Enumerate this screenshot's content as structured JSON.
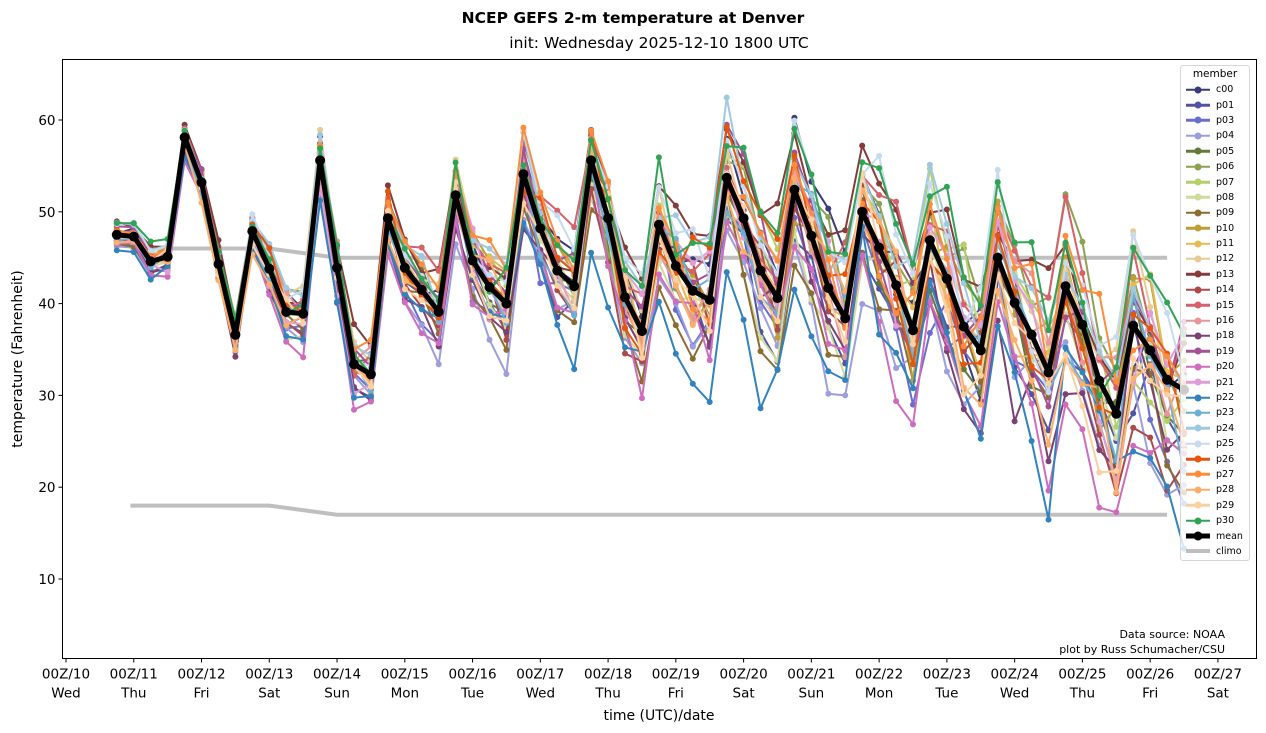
{
  "chart_data": {
    "type": "line",
    "title": "NCEP GEFS 2-m temperature at Denver",
    "subtitle": "init: Wednesday 2025-12-10 1800 UTC",
    "xlabel": "time (UTC)/date",
    "ylabel": "temperature (Fahrenheit)",
    "ylim": [
      1.4,
      66.6
    ],
    "yticks": [
      "10",
      "20",
      "30",
      "40",
      "50",
      "60"
    ],
    "ytick_values": [
      10,
      20,
      30,
      40,
      50,
      60
    ],
    "x_start_hours_after_00Z_10": 18,
    "x_step_hours": 6,
    "xlim_days": [
      -0.06,
      17.56
    ],
    "xticks": [
      {
        "top": "00Z/10",
        "bottom": "Wed"
      },
      {
        "top": "00Z/11",
        "bottom": "Thu"
      },
      {
        "top": "00Z/12",
        "bottom": "Fri"
      },
      {
        "top": "00Z/13",
        "bottom": "Sat"
      },
      {
        "top": "00Z/14",
        "bottom": "Sun"
      },
      {
        "top": "00Z/15",
        "bottom": "Mon"
      },
      {
        "top": "00Z/16",
        "bottom": "Tue"
      },
      {
        "top": "00Z/17",
        "bottom": "Wed"
      },
      {
        "top": "00Z/18",
        "bottom": "Thu"
      },
      {
        "top": "00Z/19",
        "bottom": "Fri"
      },
      {
        "top": "00Z/20",
        "bottom": "Sat"
      },
      {
        "top": "00Z/21",
        "bottom": "Sun"
      },
      {
        "top": "00Z/22",
        "bottom": "Mon"
      },
      {
        "top": "00Z/23",
        "bottom": "Tue"
      },
      {
        "top": "00Z/24",
        "bottom": "Wed"
      },
      {
        "top": "00Z/25",
        "bottom": "Thu"
      },
      {
        "top": "00Z/26",
        "bottom": "Fri"
      },
      {
        "top": "00Z/27",
        "bottom": "Sat"
      }
    ],
    "legend_title": "member",
    "legend_position": "right",
    "mean": {
      "name": "mean",
      "color": "#000000",
      "values": [
        47.5,
        47.3,
        44.6,
        45.1,
        58.1,
        53.2,
        44.3,
        36.6,
        47.9,
        43.8,
        39.1,
        38.9,
        55.6,
        43.9,
        33.4,
        32.3,
        49.3,
        43.9,
        41.5,
        39.1,
        51.8,
        44.7,
        41.8,
        40.0,
        54.1,
        48.2,
        43.6,
        41.9,
        55.6,
        49.3,
        40.7,
        37.0,
        48.6,
        44.1,
        41.4,
        40.4,
        53.7,
        49.3,
        43.6,
        40.6,
        52.4,
        47.4,
        41.7,
        38.4,
        50.0,
        46.1,
        42.0,
        37.1,
        46.9,
        42.7,
        37.5,
        34.9,
        45.0,
        40.1,
        36.6,
        32.5,
        41.9,
        37.7,
        31.6,
        28.0,
        37.6,
        34.9,
        31.7,
        30.6
      ]
    },
    "climo": {
      "name": "climo",
      "color": "#bfbfbf",
      "max": {
        "days": [
          0.95,
          3.0,
          4.0,
          16.25
        ],
        "values": [
          46,
          46,
          45,
          45
        ]
      },
      "min": {
        "days": [
          0.95,
          3.0,
          4.0,
          16.25
        ],
        "values": [
          18,
          18,
          17,
          17
        ]
      }
    },
    "members": [
      {
        "name": "c00",
        "color": "#393b79",
        "offset": 0.3,
        "seed": 1
      },
      {
        "name": "p01",
        "color": "#5254a3",
        "offset": -0.8,
        "seed": 2
      },
      {
        "name": "p03",
        "color": "#6b6ecf",
        "offset": -1.5,
        "seed": 3
      },
      {
        "name": "p04",
        "color": "#9c9ede",
        "offset": -2.0,
        "seed": 4
      },
      {
        "name": "p05",
        "color": "#637939",
        "offset": -0.5,
        "seed": 5
      },
      {
        "name": "p06",
        "color": "#8ca252",
        "offset": 0.9,
        "seed": 6
      },
      {
        "name": "p07",
        "color": "#b5cf6b",
        "offset": 0.6,
        "seed": 7
      },
      {
        "name": "p08",
        "color": "#cedb9c",
        "offset": -1.2,
        "seed": 8
      },
      {
        "name": "p09",
        "color": "#8c6d31",
        "offset": -1.8,
        "seed": 9
      },
      {
        "name": "p10",
        "color": "#bd9e39",
        "offset": 0.4,
        "seed": 10
      },
      {
        "name": "p11",
        "color": "#e7ba52",
        "offset": 0.2,
        "seed": 11
      },
      {
        "name": "p12",
        "color": "#e7cb94",
        "offset": 0.7,
        "seed": 12
      },
      {
        "name": "p13",
        "color": "#843c39",
        "offset": 2.2,
        "seed": 13
      },
      {
        "name": "p14",
        "color": "#ad494a",
        "offset": -0.9,
        "seed": 14
      },
      {
        "name": "p15",
        "color": "#d6616b",
        "offset": 1.1,
        "seed": 15
      },
      {
        "name": "p16",
        "color": "#e7969c",
        "offset": 0.5,
        "seed": 16
      },
      {
        "name": "p18",
        "color": "#7b4173",
        "offset": -1.4,
        "seed": 17
      },
      {
        "name": "p19",
        "color": "#a55194",
        "offset": 0.8,
        "seed": 18
      },
      {
        "name": "p20",
        "color": "#ce6dbd",
        "offset": -2.4,
        "seed": 19
      },
      {
        "name": "p21",
        "color": "#de9ed6",
        "offset": -0.3,
        "seed": 20
      },
      {
        "name": "p22",
        "color": "#3182bd",
        "offset": -2.6,
        "seed": 21
      },
      {
        "name": "p23",
        "color": "#6baed6",
        "offset": 0.1,
        "seed": 22
      },
      {
        "name": "p24",
        "color": "#9ecae1",
        "offset": 1.3,
        "seed": 23
      },
      {
        "name": "p25",
        "color": "#c6dbef",
        "offset": 1.6,
        "seed": 24
      },
      {
        "name": "p26",
        "color": "#e6550d",
        "offset": 0.9,
        "seed": 25
      },
      {
        "name": "p27",
        "color": "#fd8d3c",
        "offset": 1.2,
        "seed": 26
      },
      {
        "name": "p28",
        "color": "#fdae6b",
        "offset": -0.6,
        "seed": 27
      },
      {
        "name": "p29",
        "color": "#fdd0a2",
        "offset": -0.2,
        "seed": 28
      },
      {
        "name": "p30",
        "color": "#31a354",
        "offset": 1.5,
        "seed": 29
      }
    ],
    "member_spread_note": "spread grows with lead time"
  },
  "annotation": {
    "line1": "Data source: NOAA",
    "line2": "plot by Russ Schumacher/CSU"
  }
}
